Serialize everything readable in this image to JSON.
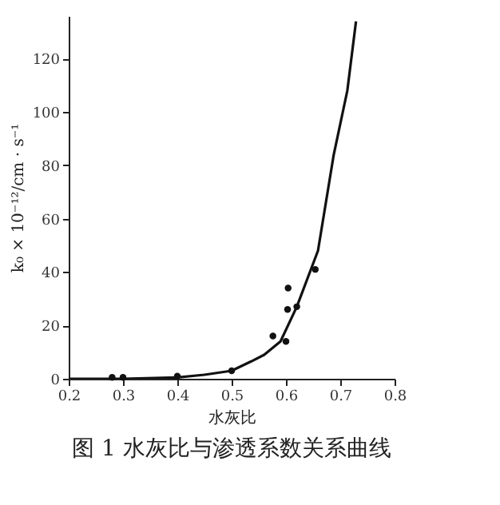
{
  "chart_data": {
    "type": "scatter",
    "title": "图 1  水灰比与渗透系数关系曲线",
    "xlabel": "水灰比",
    "ylabel": "k₀ × 10⁻¹²/cm · s⁻¹",
    "xlim": [
      0.2,
      0.8
    ],
    "xticks": [
      0.2,
      0.3,
      0.4,
      0.5,
      0.6,
      0.7,
      0.8
    ],
    "ylim": [
      0,
      136
    ],
    "yticks": [
      0,
      20,
      40,
      60,
      80,
      100,
      120
    ],
    "grid": false,
    "series": [
      {
        "color": "#111111",
        "marker": "circle",
        "x": [
          0.28,
          0.3,
          0.4,
          0.5,
          0.576,
          0.6,
          0.603,
          0.604,
          0.62,
          0.654
        ],
        "values": [
          0.5,
          0.5,
          1,
          3,
          16,
          14,
          26,
          34,
          27,
          41
        ]
      },
      {
        "type": "line",
        "color": "#111111",
        "line_style": "solid",
        "x": [
          0.2,
          0.3,
          0.4,
          0.45,
          0.5,
          0.536,
          0.56,
          0.59,
          0.62,
          0.659,
          0.688,
          0.713,
          0.729
        ],
        "values": [
          0,
          0,
          0.5,
          1.5,
          3,
          6.5,
          9,
          14,
          27,
          48,
          84,
          108,
          134
        ]
      }
    ]
  }
}
